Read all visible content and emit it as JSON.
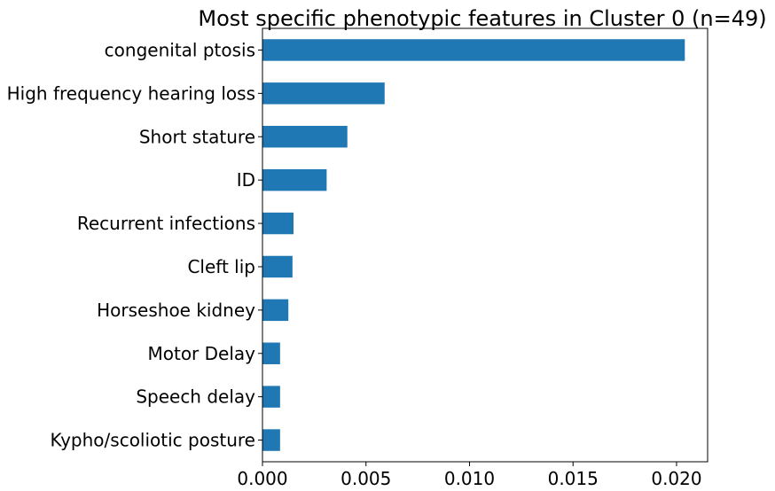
{
  "chart_data": {
    "type": "bar",
    "orientation": "horizontal",
    "title": "Most specific phenotypic features in Cluster 0 (n=49)",
    "xlabel": "",
    "ylabel": "",
    "categories": [
      "congenital ptosis",
      "High frequency hearing loss",
      "Short stature",
      "ID",
      "Recurrent infections",
      "Cleft lip",
      "Horseshoe kidney",
      "Motor Delay",
      "Speech delay",
      "Kypho/scoliotic posture"
    ],
    "values": [
      0.0204,
      0.0059,
      0.0041,
      0.0031,
      0.0015,
      0.00145,
      0.00125,
      0.00085,
      0.00085,
      0.00085
    ],
    "xlim": [
      0,
      0.0215
    ],
    "xticks": [
      "0.000",
      "0.005",
      "0.010",
      "0.015",
      "0.020"
    ],
    "xtick_values": [
      0,
      0.005,
      0.01,
      0.015,
      0.02
    ],
    "grid": false,
    "legend": "none",
    "bar_color": "#1f77b4"
  }
}
